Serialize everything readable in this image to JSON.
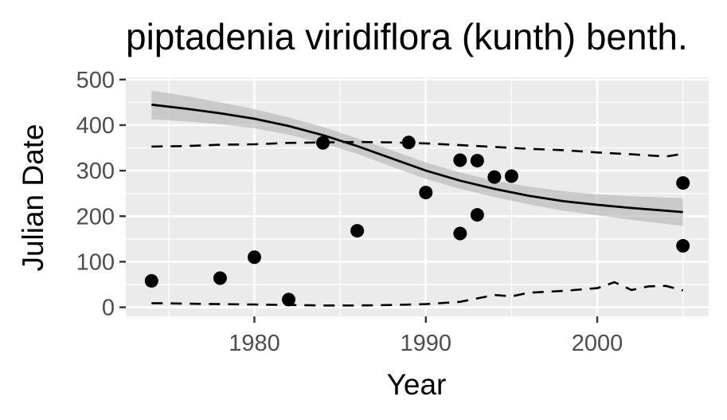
{
  "chart_data": {
    "type": "scatter",
    "title": "piptadenia viridiflora (kunth) benth.",
    "xlabel": "Year",
    "ylabel": "Julian Date",
    "xlim": [
      1972.5,
      2006.5
    ],
    "ylim": [
      -20,
      505
    ],
    "x_ticks": [
      1980,
      1990,
      2000
    ],
    "y_ticks": [
      0,
      100,
      200,
      300,
      400,
      500
    ],
    "x_tick_labels": [
      "1980",
      "1990",
      "2000"
    ],
    "y_tick_labels": [
      "0",
      "100",
      "200",
      "300",
      "400",
      "500"
    ],
    "grid": true,
    "colors": {
      "panel": "#ebebeb",
      "grid": "#ffffff",
      "points": "#000000",
      "ribbon": "#b3b3b3",
      "line": "#000000"
    },
    "points": [
      {
        "x": 1974,
        "y": 58
      },
      {
        "x": 1978,
        "y": 64
      },
      {
        "x": 1980,
        "y": 110
      },
      {
        "x": 1982,
        "y": 17
      },
      {
        "x": 1984,
        "y": 361
      },
      {
        "x": 1986,
        "y": 168
      },
      {
        "x": 1989,
        "y": 362
      },
      {
        "x": 1990,
        "y": 252
      },
      {
        "x": 1992,
        "y": 323
      },
      {
        "x": 1992,
        "y": 162
      },
      {
        "x": 1993,
        "y": 322
      },
      {
        "x": 1993,
        "y": 203
      },
      {
        "x": 1994,
        "y": 286
      },
      {
        "x": 1995,
        "y": 288
      },
      {
        "x": 2005,
        "y": 273
      },
      {
        "x": 2005,
        "y": 135
      }
    ],
    "trend": {
      "x": [
        1974,
        1976,
        1978,
        1980,
        1982,
        1984,
        1986,
        1988,
        1990,
        1992,
        1994,
        1996,
        1998,
        2000,
        2002,
        2004,
        2005
      ],
      "y": [
        445,
        436,
        426,
        414,
        398,
        378,
        354,
        327,
        300,
        278,
        260,
        245,
        233,
        225,
        218,
        212,
        209
      ],
      "ci_upper": [
        476,
        464,
        450,
        435,
        417,
        396,
        371,
        345,
        318,
        296,
        278,
        265,
        255,
        248,
        244,
        241,
        240
      ],
      "ci_lower": [
        413,
        408,
        402,
        393,
        379,
        360,
        337,
        309,
        282,
        260,
        242,
        226,
        212,
        202,
        192,
        183,
        179
      ]
    },
    "upper_bound": {
      "x": [
        1974,
        1976,
        1978,
        1980,
        1982,
        1984,
        1986,
        1988,
        1990,
        1992,
        1994,
        1996,
        1998,
        2000,
        2002,
        2004,
        2005
      ],
      "y": [
        353,
        354,
        357,
        358,
        361,
        362,
        363,
        362,
        360,
        356,
        352,
        348,
        345,
        340,
        336,
        331,
        337
      ]
    },
    "lower_bound": {
      "x": [
        1974,
        1976,
        1978,
        1980,
        1982,
        1984,
        1986,
        1988,
        1990,
        1992,
        1994,
        1995,
        1996,
        1998,
        2000,
        2001,
        2002,
        2003,
        2004,
        2005
      ],
      "y": [
        9,
        8,
        7,
        6,
        5,
        4,
        4,
        5,
        7,
        12,
        27,
        24,
        32,
        36,
        42,
        55,
        38,
        46,
        47,
        37
      ]
    }
  }
}
